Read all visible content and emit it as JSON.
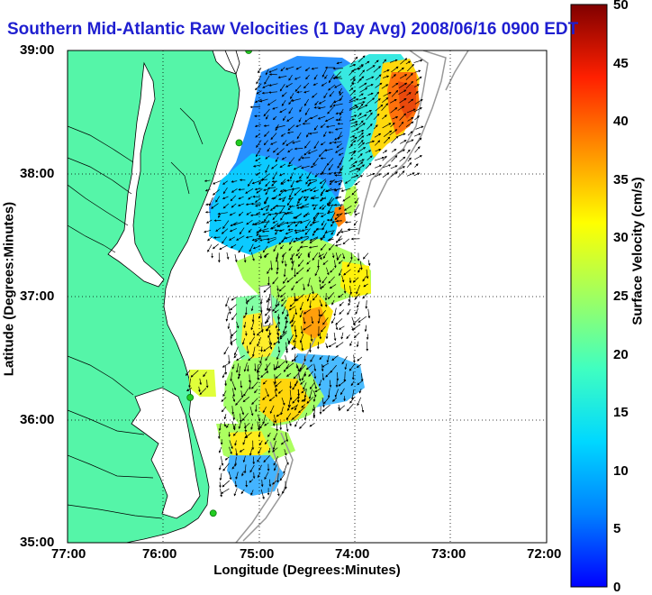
{
  "title": "Southern Mid-Atlantic Raw Velocities (1 Day Avg) 2008/06/16 0900 EDT",
  "axes": {
    "xlabel": "Longitude (Degrees:Minutes)",
    "ylabel": "Latitude (Degrees:Minutes)",
    "xticks": [
      "77:00",
      "76:00",
      "75:00",
      "74:00",
      "73:00",
      "72:00"
    ],
    "yticks": [
      "39:00",
      "38:00",
      "37:00",
      "36:00",
      "35:00"
    ]
  },
  "colorbar": {
    "label": "Surface Velocity (cm/s)",
    "ticks": [
      "50",
      "45",
      "40",
      "35",
      "30",
      "25",
      "20",
      "15",
      "10",
      "5",
      "0"
    ],
    "min": 0,
    "max": 50
  },
  "colors": {
    "land": "#55f5a8",
    "title": "#1f1fd0",
    "station": "#22cc22"
  },
  "stations": [
    {
      "lon": -75.11,
      "lat": 39.0
    },
    {
      "lon": -75.21,
      "lat": 38.25
    },
    {
      "lon": -75.72,
      "lat": 36.18
    },
    {
      "lon": -75.48,
      "lat": 35.24
    }
  ]
}
